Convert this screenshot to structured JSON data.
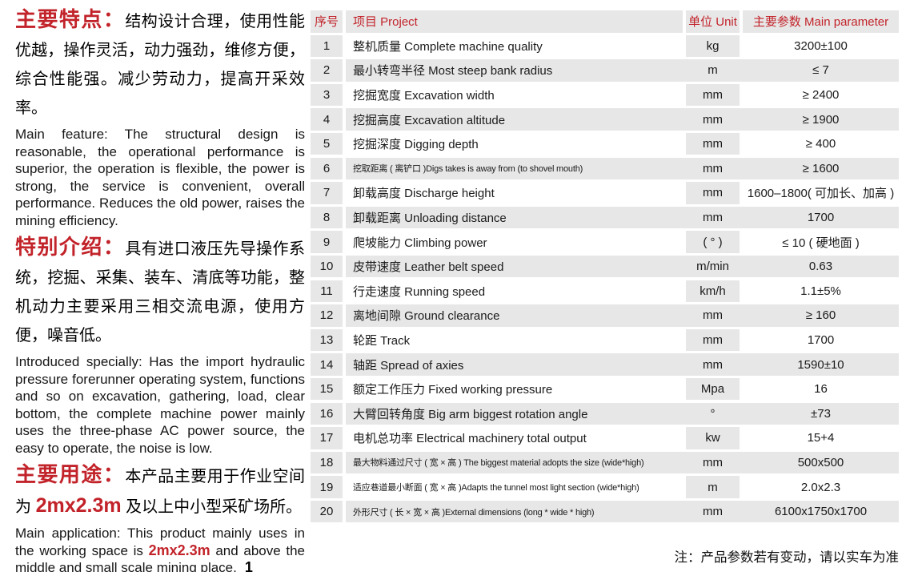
{
  "accent_red": "#c2232a",
  "table_gray": "#e7e7e7",
  "left": {
    "feature": {
      "heading": "主要特点：",
      "cn": "结构设计合理，使用性能优越，操作灵活，动力强劲，维修方便，综合性能强。减少劳动力，提高开采效率。",
      "en": "Main feature: The structural design is reasonable, the operational performance is superior, the operation is flexible, the power is strong, the service is convenient, overall performance. Reduces the old power, raises the mining efficiency."
    },
    "intro": {
      "heading": "特别介绍：",
      "cn": "具有进口液压先导操作系统，挖掘、采集、装车、清底等功能，整机动力主要采用三相交流电源，使用方便，噪音低。",
      "en": "Introduced specially: Has the import hydraulic pressure forerunner operating system, functions and so on excavation, gathering, load, clear bottom, the complete machine power mainly uses the three-phase AC power source, the easy to operate, the noise is low."
    },
    "application": {
      "heading": "主要用途：",
      "cn_pre": "本产品主要用于作业空间为 ",
      "cn_red": "2mx2.3m",
      "cn_post": " 及以上中小型采矿场所。",
      "en_pre": "Main application: This product mainly uses in the working space is ",
      "en_red": "2mx2.3m",
      "en_post": " and above the middle and small scale mining place.",
      "page_number": "1"
    }
  },
  "table": {
    "headers": {
      "no": "序号",
      "project": "项目 Project",
      "unit": "单位 Unit",
      "param": "主要参数 Main parameter"
    },
    "rows": [
      {
        "no": "1",
        "project": "整机质量 Complete machine quality",
        "unit": "kg",
        "param": "3200±100"
      },
      {
        "no": "2",
        "project": "最小转弯半径 Most steep bank radius",
        "unit": "m",
        "param": "≤ 7"
      },
      {
        "no": "3",
        "project": "挖掘宽度 Excavation width",
        "unit": "mm",
        "param": "≥ 2400"
      },
      {
        "no": "4",
        "project": "挖掘高度 Excavation altitude",
        "unit": "mm",
        "param": "≥ 1900"
      },
      {
        "no": "5",
        "project": "挖掘深度 Digging depth",
        "unit": "mm",
        "param": "≥ 400"
      },
      {
        "no": "6",
        "project": "挖取距离 ( 离铲口 )Digs takes is away from (to shovel mouth)",
        "unit": "mm",
        "param": "≥ 1600"
      },
      {
        "no": "7",
        "project": "卸载高度 Discharge height",
        "unit": "mm",
        "param": "1600–1800( 可加长、加高 )"
      },
      {
        "no": "8",
        "project": "卸载距离 Unloading distance",
        "unit": "mm",
        "param": "1700"
      },
      {
        "no": "9",
        "project": "爬坡能力 Climbing power",
        "unit": "( ° )",
        "param": "≤ 10 ( 硬地面 )"
      },
      {
        "no": "10",
        "project": "皮带速度 Leather belt speed",
        "unit": "m/min",
        "param": "0.63"
      },
      {
        "no": "11",
        "project": "行走速度 Running speed",
        "unit": "km/h",
        "param": "1.1±5%"
      },
      {
        "no": "12",
        "project": "离地间隙 Ground clearance",
        "unit": "mm",
        "param": "≥ 160"
      },
      {
        "no": "13",
        "project": "轮距 Track",
        "unit": "mm",
        "param": "1700"
      },
      {
        "no": "14",
        "project": "轴距 Spread of axies",
        "unit": "mm",
        "param": "1590±10"
      },
      {
        "no": "15",
        "project": "额定工作压力 Fixed working pressure",
        "unit": "Mpa",
        "param": "16"
      },
      {
        "no": "16",
        "project": "大臂回转角度 Big arm biggest rotation angle",
        "unit": "°",
        "param": "±73"
      },
      {
        "no": "17",
        "project": "电机总功率 Electrical machinery total output",
        "unit": "kw",
        "param": "15+4"
      },
      {
        "no": "18",
        "project": "最大物料通过尺寸 ( 宽 × 高 ) The biggest material adopts the size (wide*high)",
        "unit": "mm",
        "param": "500x500"
      },
      {
        "no": "19",
        "project": "适应巷道最小断面 ( 宽 × 高 )Adapts the tunnel most light section (wide*high)",
        "unit": "m",
        "param": "2.0x2.3"
      },
      {
        "no": "20",
        "project": "外形尺寸 ( 长 × 宽 × 高 )External dimensions (long * wide * high)",
        "unit": "mm",
        "param": "6100x1750x1700"
      }
    ]
  },
  "footnote": "注：产品参数若有变动，请以实车为准"
}
